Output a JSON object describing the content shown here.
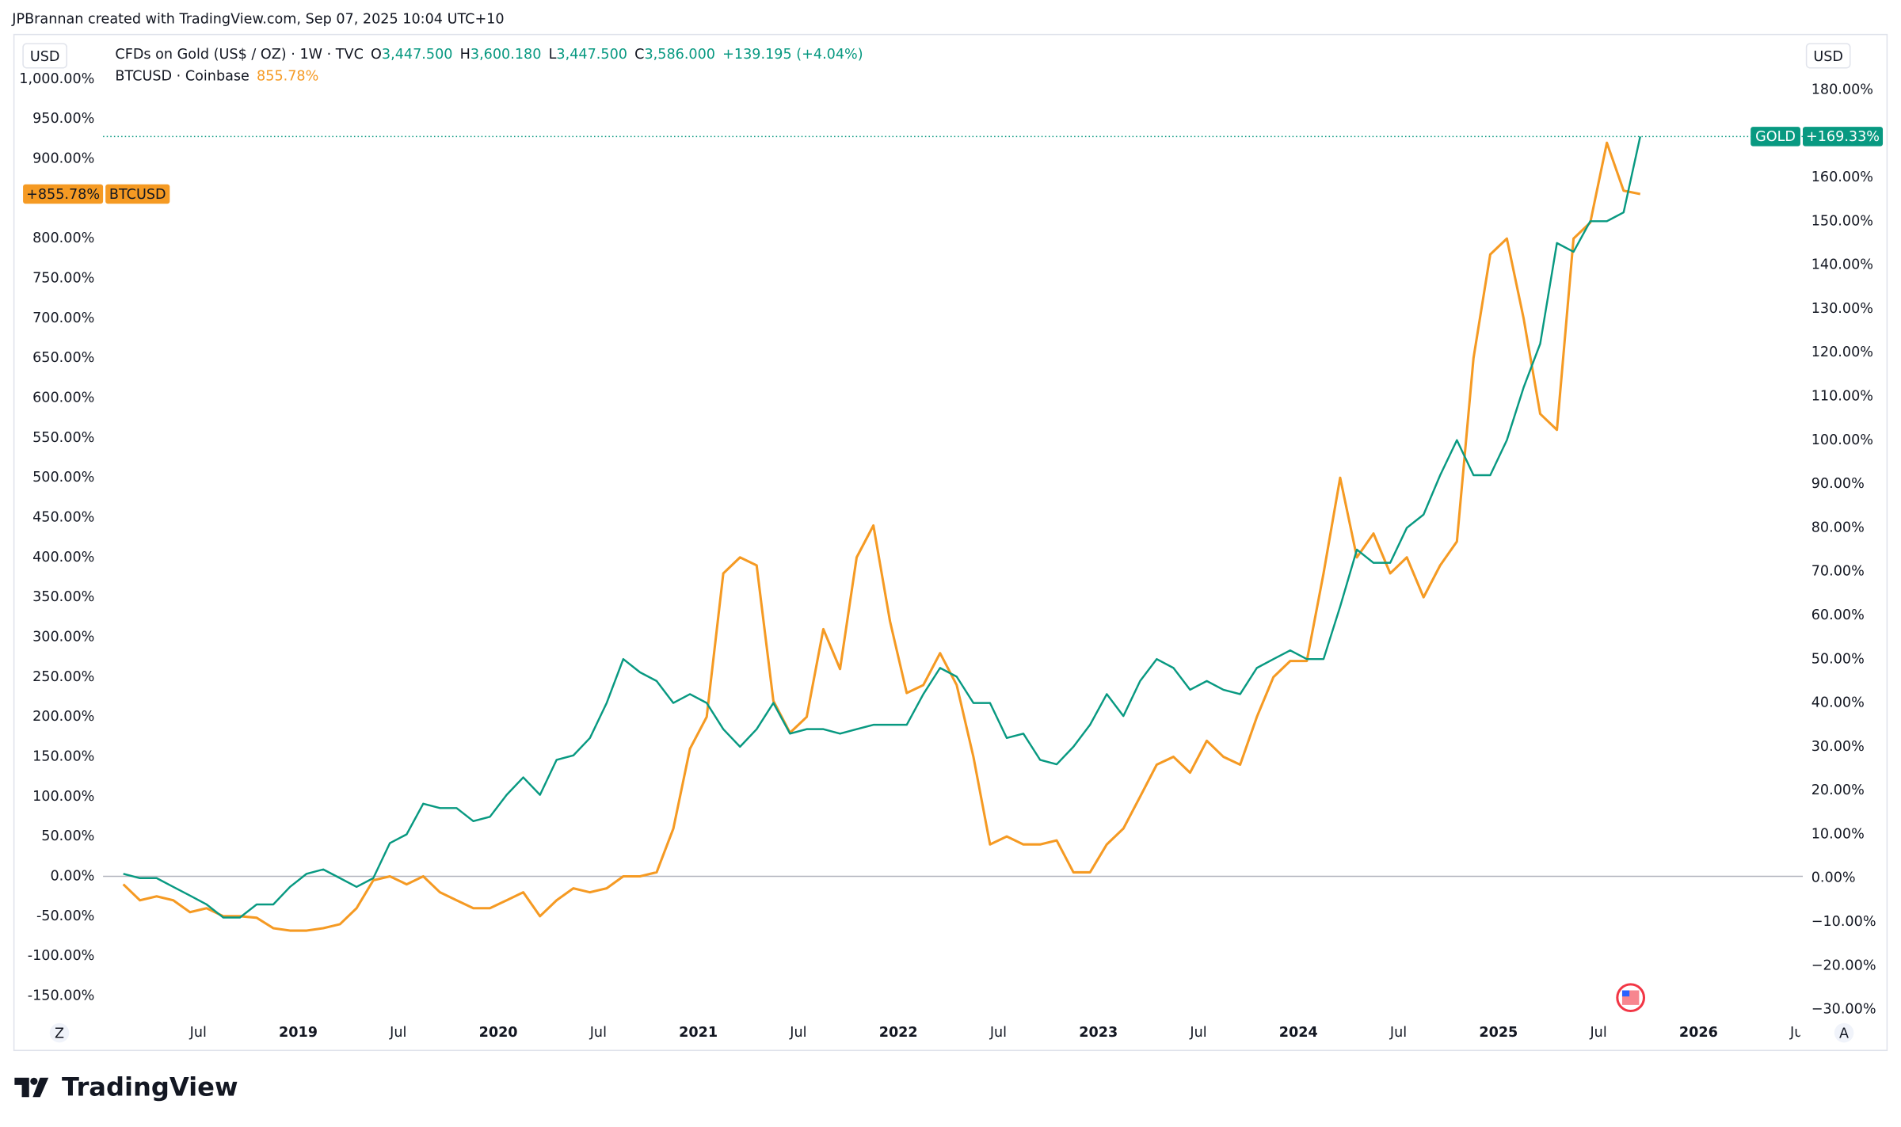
{
  "header": "JPBrannan created with TradingView.com, Sep 07, 2025 10:04 UTC+10",
  "logo": "TradingView",
  "currency_left": "USD",
  "currency_right": "USD",
  "corner_left": "Z",
  "corner_right": "A",
  "legend": {
    "gold_title": "CFDs on Gold (US$ / OZ) · 1W · TVC",
    "ohlc": [
      {
        "key": "O",
        "value": "3,447.500"
      },
      {
        "key": "H",
        "value": "3,600.180"
      },
      {
        "key": "L",
        "value": "3,447.500"
      },
      {
        "key": "C",
        "value": "3,586.000"
      }
    ],
    "change": "+139.195 (+4.04%)",
    "btc_title": "BTCUSD · Coinbase",
    "btc_value": "855.78%"
  },
  "chart_data": {
    "type": "line",
    "x": [
      "2018-02",
      "2018-03",
      "2018-04",
      "2018-05",
      "2018-06",
      "2018-07",
      "2018-08",
      "2018-09",
      "2018-10",
      "2018-11",
      "2018-12",
      "2019-01",
      "2019-02",
      "2019-03",
      "2019-04",
      "2019-05",
      "2019-06",
      "2019-07",
      "2019-08",
      "2019-09",
      "2019-10",
      "2019-11",
      "2019-12",
      "2020-01",
      "2020-02",
      "2020-03",
      "2020-04",
      "2020-05",
      "2020-06",
      "2020-07",
      "2020-08",
      "2020-09",
      "2020-10",
      "2020-11",
      "2020-12",
      "2021-01",
      "2021-02",
      "2021-03",
      "2021-04",
      "2021-05",
      "2021-06",
      "2021-07",
      "2021-08",
      "2021-09",
      "2021-10",
      "2021-11",
      "2021-12",
      "2022-01",
      "2022-02",
      "2022-03",
      "2022-04",
      "2022-05",
      "2022-06",
      "2022-07",
      "2022-08",
      "2022-09",
      "2022-10",
      "2022-11",
      "2022-12",
      "2023-01",
      "2023-02",
      "2023-03",
      "2023-04",
      "2023-05",
      "2023-06",
      "2023-07",
      "2023-08",
      "2023-09",
      "2023-10",
      "2023-11",
      "2023-12",
      "2024-01",
      "2024-02",
      "2024-03",
      "2024-04",
      "2024-05",
      "2024-06",
      "2024-07",
      "2024-08",
      "2024-09",
      "2024-10",
      "2024-11",
      "2024-12",
      "2025-01",
      "2025-02",
      "2025-03",
      "2025-04",
      "2025-05",
      "2025-06",
      "2025-07",
      "2025-08",
      "2025-09"
    ],
    "series": [
      {
        "name": "BTCUSD",
        "color": "#f59a23",
        "axis": "y",
        "badge": "+855.78%",
        "values": [
          -10,
          -30,
          -25,
          -30,
          -45,
          -40,
          -50,
          -50,
          -52,
          -65,
          -68,
          -68,
          -65,
          -60,
          -40,
          -5,
          0,
          -10,
          0,
          -20,
          -30,
          -40,
          -40,
          -30,
          -20,
          -50,
          -30,
          -15,
          -20,
          -15,
          0,
          0,
          5,
          60,
          160,
          200,
          380,
          400,
          390,
          220,
          180,
          200,
          310,
          260,
          400,
          440,
          320,
          230,
          240,
          280,
          240,
          150,
          40,
          50,
          40,
          40,
          45,
          5,
          5,
          40,
          60,
          100,
          140,
          150,
          130,
          170,
          150,
          140,
          200,
          250,
          270,
          270,
          380,
          500,
          400,
          430,
          380,
          400,
          350,
          390,
          420,
          650,
          780,
          800,
          700,
          580,
          560,
          800,
          820,
          920,
          860,
          855.78
        ]
      },
      {
        "name": "GOLD",
        "color": "#089981",
        "axis": "y2",
        "badge": "+169.33%",
        "values": [
          1,
          0,
          0,
          -2,
          -4,
          -6,
          -9,
          -9,
          -6,
          -6,
          -2,
          1,
          2,
          0,
          -2,
          0,
          8,
          10,
          17,
          16,
          16,
          13,
          14,
          19,
          23,
          19,
          27,
          28,
          32,
          40,
          50,
          47,
          45,
          40,
          42,
          40,
          34,
          30,
          34,
          40,
          33,
          34,
          34,
          33,
          34,
          35,
          35,
          35,
          42,
          48,
          46,
          40,
          40,
          32,
          33,
          27,
          26,
          30,
          35,
          42,
          37,
          45,
          50,
          48,
          43,
          45,
          43,
          42,
          48,
          50,
          52,
          50,
          50,
          62,
          75,
          72,
          72,
          80,
          83,
          92,
          100,
          92,
          92,
          100,
          112,
          122,
          145,
          143,
          150,
          150,
          152,
          169.33
        ]
      }
    ],
    "xticks": [
      {
        "value": "2018-07",
        "label": "Jul"
      },
      {
        "value": "2019-01",
        "label": "2019"
      },
      {
        "value": "2019-07",
        "label": "Jul"
      },
      {
        "value": "2020-01",
        "label": "2020"
      },
      {
        "value": "2020-07",
        "label": "Jul"
      },
      {
        "value": "2021-01",
        "label": "2021"
      },
      {
        "value": "2021-07",
        "label": "Jul"
      },
      {
        "value": "2022-01",
        "label": "2022"
      },
      {
        "value": "2022-07",
        "label": "Jul"
      },
      {
        "value": "2023-01",
        "label": "2023"
      },
      {
        "value": "2023-07",
        "label": "Jul"
      },
      {
        "value": "2024-01",
        "label": "2024"
      },
      {
        "value": "2024-07",
        "label": "Jul"
      },
      {
        "value": "2025-01",
        "label": "2025"
      },
      {
        "value": "2025-07",
        "label": "Jul"
      },
      {
        "value": "2026-01",
        "label": "2026"
      },
      {
        "value": "2026-07",
        "label": "Jul"
      }
    ],
    "ylim": [
      -178,
      1014
    ],
    "yticks": [
      {
        "value": -150,
        "label": "-150.00%"
      },
      {
        "value": -100,
        "label": "-100.00%"
      },
      {
        "value": -50,
        "label": "-50.00%"
      },
      {
        "value": 0,
        "label": "0.00%"
      },
      {
        "value": 50,
        "label": "50.00%"
      },
      {
        "value": 100,
        "label": "100.00%"
      },
      {
        "value": 150,
        "label": "150.00%"
      },
      {
        "value": 200,
        "label": "200.00%"
      },
      {
        "value": 250,
        "label": "250.00%"
      },
      {
        "value": 300,
        "label": "300.00%"
      },
      {
        "value": 350,
        "label": "350.00%"
      },
      {
        "value": 400,
        "label": "400.00%"
      },
      {
        "value": 450,
        "label": "450.00%"
      },
      {
        "value": 500,
        "label": "500.00%"
      },
      {
        "value": 550,
        "label": "550.00%"
      },
      {
        "value": 600,
        "label": "600.00%"
      },
      {
        "value": 650,
        "label": "650.00%"
      },
      {
        "value": 700,
        "label": "700.00%"
      },
      {
        "value": 750,
        "label": "750.00%"
      },
      {
        "value": 800,
        "label": "800.00%"
      },
      {
        "value": 900,
        "label": "900.00%"
      },
      {
        "value": 950,
        "label": "950.00%"
      },
      {
        "value": 1000,
        "label": "1,000.00%"
      }
    ],
    "y2lim": [
      -32,
      185
    ],
    "y2ticks": [
      {
        "value": -30,
        "label": "−30.00%"
      },
      {
        "value": -20,
        "label": "−20.00%"
      },
      {
        "value": -10,
        "label": "−10.00%"
      },
      {
        "value": 0,
        "label": "0.00%"
      },
      {
        "value": 10,
        "label": "10.00%"
      },
      {
        "value": 20,
        "label": "20.00%"
      },
      {
        "value": 30,
        "label": "30.00%"
      },
      {
        "value": 40,
        "label": "40.00%"
      },
      {
        "value": 50,
        "label": "50.00%"
      },
      {
        "value": 60,
        "label": "60.00%"
      },
      {
        "value": 70,
        "label": "70.00%"
      },
      {
        "value": 80,
        "label": "80.00%"
      },
      {
        "value": 90,
        "label": "90.00%"
      },
      {
        "value": 100,
        "label": "100.00%"
      },
      {
        "value": 110,
        "label": "110.00%"
      },
      {
        "value": 120,
        "label": "120.00%"
      },
      {
        "value": 130,
        "label": "130.00%"
      },
      {
        "value": 140,
        "label": "140.00%"
      },
      {
        "value": 150,
        "label": "150.00%"
      },
      {
        "value": 160,
        "label": "160.00%"
      },
      {
        "value": 170,
        "label": "170.00%"
      },
      {
        "value": 180,
        "label": "180.00%"
      }
    ],
    "grid": false
  }
}
